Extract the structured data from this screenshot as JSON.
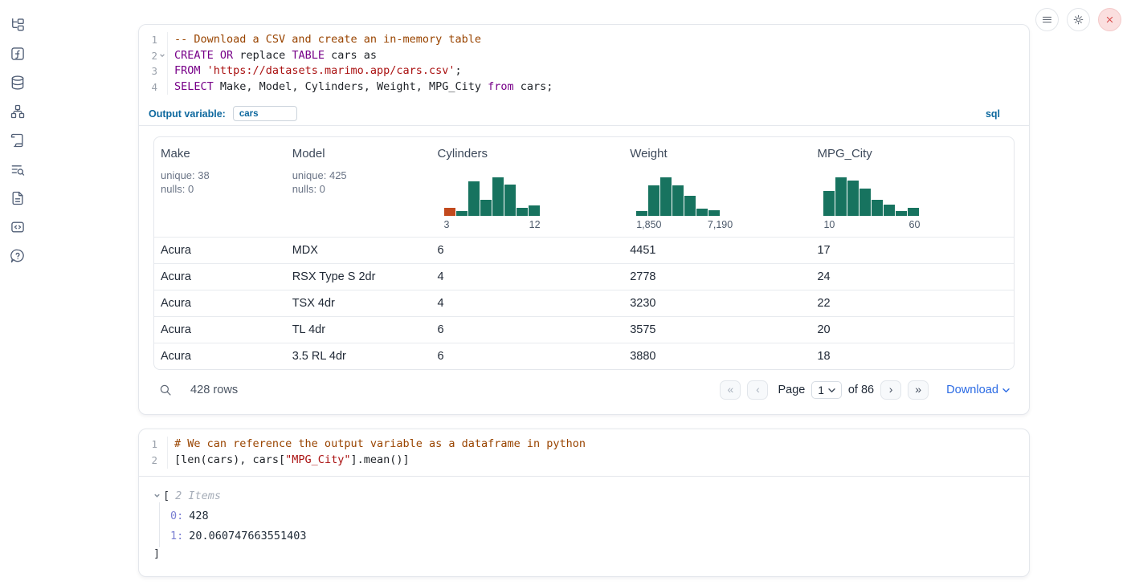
{
  "topbar": {
    "icons": [
      "menu",
      "settings",
      "close"
    ]
  },
  "sidebar": {
    "icons": [
      "file-tree",
      "function",
      "database",
      "dependency-graph",
      "scroll-logs",
      "list-search",
      "file-text",
      "code-snippet",
      "help"
    ]
  },
  "sql_cell": {
    "lines": [
      {
        "n": "1",
        "tokens": [
          {
            "c": "com",
            "t": "-- Download a CSV and create an in-memory table"
          }
        ]
      },
      {
        "n": "2",
        "fold": true,
        "tokens": [
          {
            "c": "kw",
            "t": "CREATE"
          },
          {
            "c": "pl",
            "t": " "
          },
          {
            "c": "kw",
            "t": "OR"
          },
          {
            "c": "pl",
            "t": " replace "
          },
          {
            "c": "kw",
            "t": "TABLE"
          },
          {
            "c": "pl",
            "t": " cars as"
          }
        ]
      },
      {
        "n": "3",
        "tokens": [
          {
            "c": "kw",
            "t": "FROM"
          },
          {
            "c": "pl",
            "t": " "
          },
          {
            "c": "str",
            "t": "'https://datasets.marimo.app/cars.csv'"
          },
          {
            "c": "pl",
            "t": ";"
          }
        ]
      },
      {
        "n": "4",
        "tokens": [
          {
            "c": "kw",
            "t": "SELECT"
          },
          {
            "c": "pl",
            "t": " Make, Model, Cylinders, Weight, MPG_City "
          },
          {
            "c": "kw",
            "t": "from"
          },
          {
            "c": "pl",
            "t": " cars;"
          }
        ]
      }
    ],
    "output_variable_label": "Output variable:",
    "output_variable_value": "cars",
    "language_badge": "sql"
  },
  "table": {
    "columns": [
      {
        "label": "Make",
        "stats": [
          "unique: 38",
          "nulls: 0"
        ]
      },
      {
        "label": "Model",
        "stats": [
          "unique: 425",
          "nulls: 0"
        ]
      },
      {
        "label": "Cylinders",
        "hist": 0
      },
      {
        "label": "Weight",
        "hist": 1
      },
      {
        "label": "MPG_City",
        "hist": 2
      }
    ],
    "rows": [
      [
        "Acura",
        "MDX",
        "6",
        "4451",
        "17"
      ],
      [
        "Acura",
        "RSX Type S 2dr",
        "4",
        "2778",
        "24"
      ],
      [
        "Acura",
        "TSX 4dr",
        "4",
        "3230",
        "22"
      ],
      [
        "Acura",
        "TL 4dr",
        "6",
        "3575",
        "20"
      ],
      [
        "Acura",
        "3.5 RL 4dr",
        "6",
        "3880",
        "18"
      ]
    ],
    "footer": {
      "row_count": "428 rows",
      "page_label": "Page",
      "page_value": "1",
      "of_label": "of 86",
      "download_label": "Download"
    }
  },
  "chart_data": [
    {
      "type": "bar",
      "title": "Cylinders column histogram",
      "xlabel_min": "3",
      "xlabel_max": "12",
      "values_relative": [
        0.21,
        0.13,
        0.9,
        0.42,
        1.0,
        0.81,
        0.21,
        0.27
      ],
      "bar_color": "#17735F",
      "first_bar_color": "#C2491D",
      "note": "inline column preview; heights normalized to tallest bin"
    },
    {
      "type": "bar",
      "title": "Weight column histogram",
      "xlabel_min": "1,850",
      "xlabel_max": "7,190",
      "values_relative": [
        0.13,
        0.79,
        1.0,
        0.79,
        0.52,
        0.19,
        0.15
      ],
      "bar_color": "#17735F",
      "note": "inline column preview; heights normalized to tallest bin"
    },
    {
      "type": "bar",
      "title": "MPG_City column histogram",
      "xlabel_min": "10",
      "xlabel_max": "60",
      "values_relative": [
        0.65,
        1.0,
        0.92,
        0.71,
        0.42,
        0.29,
        0.13,
        0.21
      ],
      "bar_color": "#17735F",
      "note": "inline column preview; heights normalized to tallest bin"
    }
  ],
  "python_cell": {
    "lines": [
      {
        "n": "1",
        "tokens": [
          {
            "c": "com",
            "t": "# We can reference the output variable as a dataframe in python"
          }
        ]
      },
      {
        "n": "2",
        "tokens": [
          {
            "c": "pl",
            "t": "[len(cars), cars["
          },
          {
            "c": "str",
            "t": "\"MPG_City\""
          },
          {
            "c": "pl",
            "t": "].mean()]"
          }
        ]
      }
    ]
  },
  "python_output": {
    "open_bracket": "[",
    "items_label": "2 Items",
    "entries": [
      {
        "key": "0:",
        "value": "428"
      },
      {
        "key": "1:",
        "value": "20.060747663551403"
      }
    ],
    "close_bracket": "]"
  },
  "colors": {
    "accent_blue": "#0d689e",
    "hist_teal": "#17735F",
    "hist_orange": "#C2491D",
    "download_blue": "#2b6be4",
    "close_red": "#d64545"
  }
}
